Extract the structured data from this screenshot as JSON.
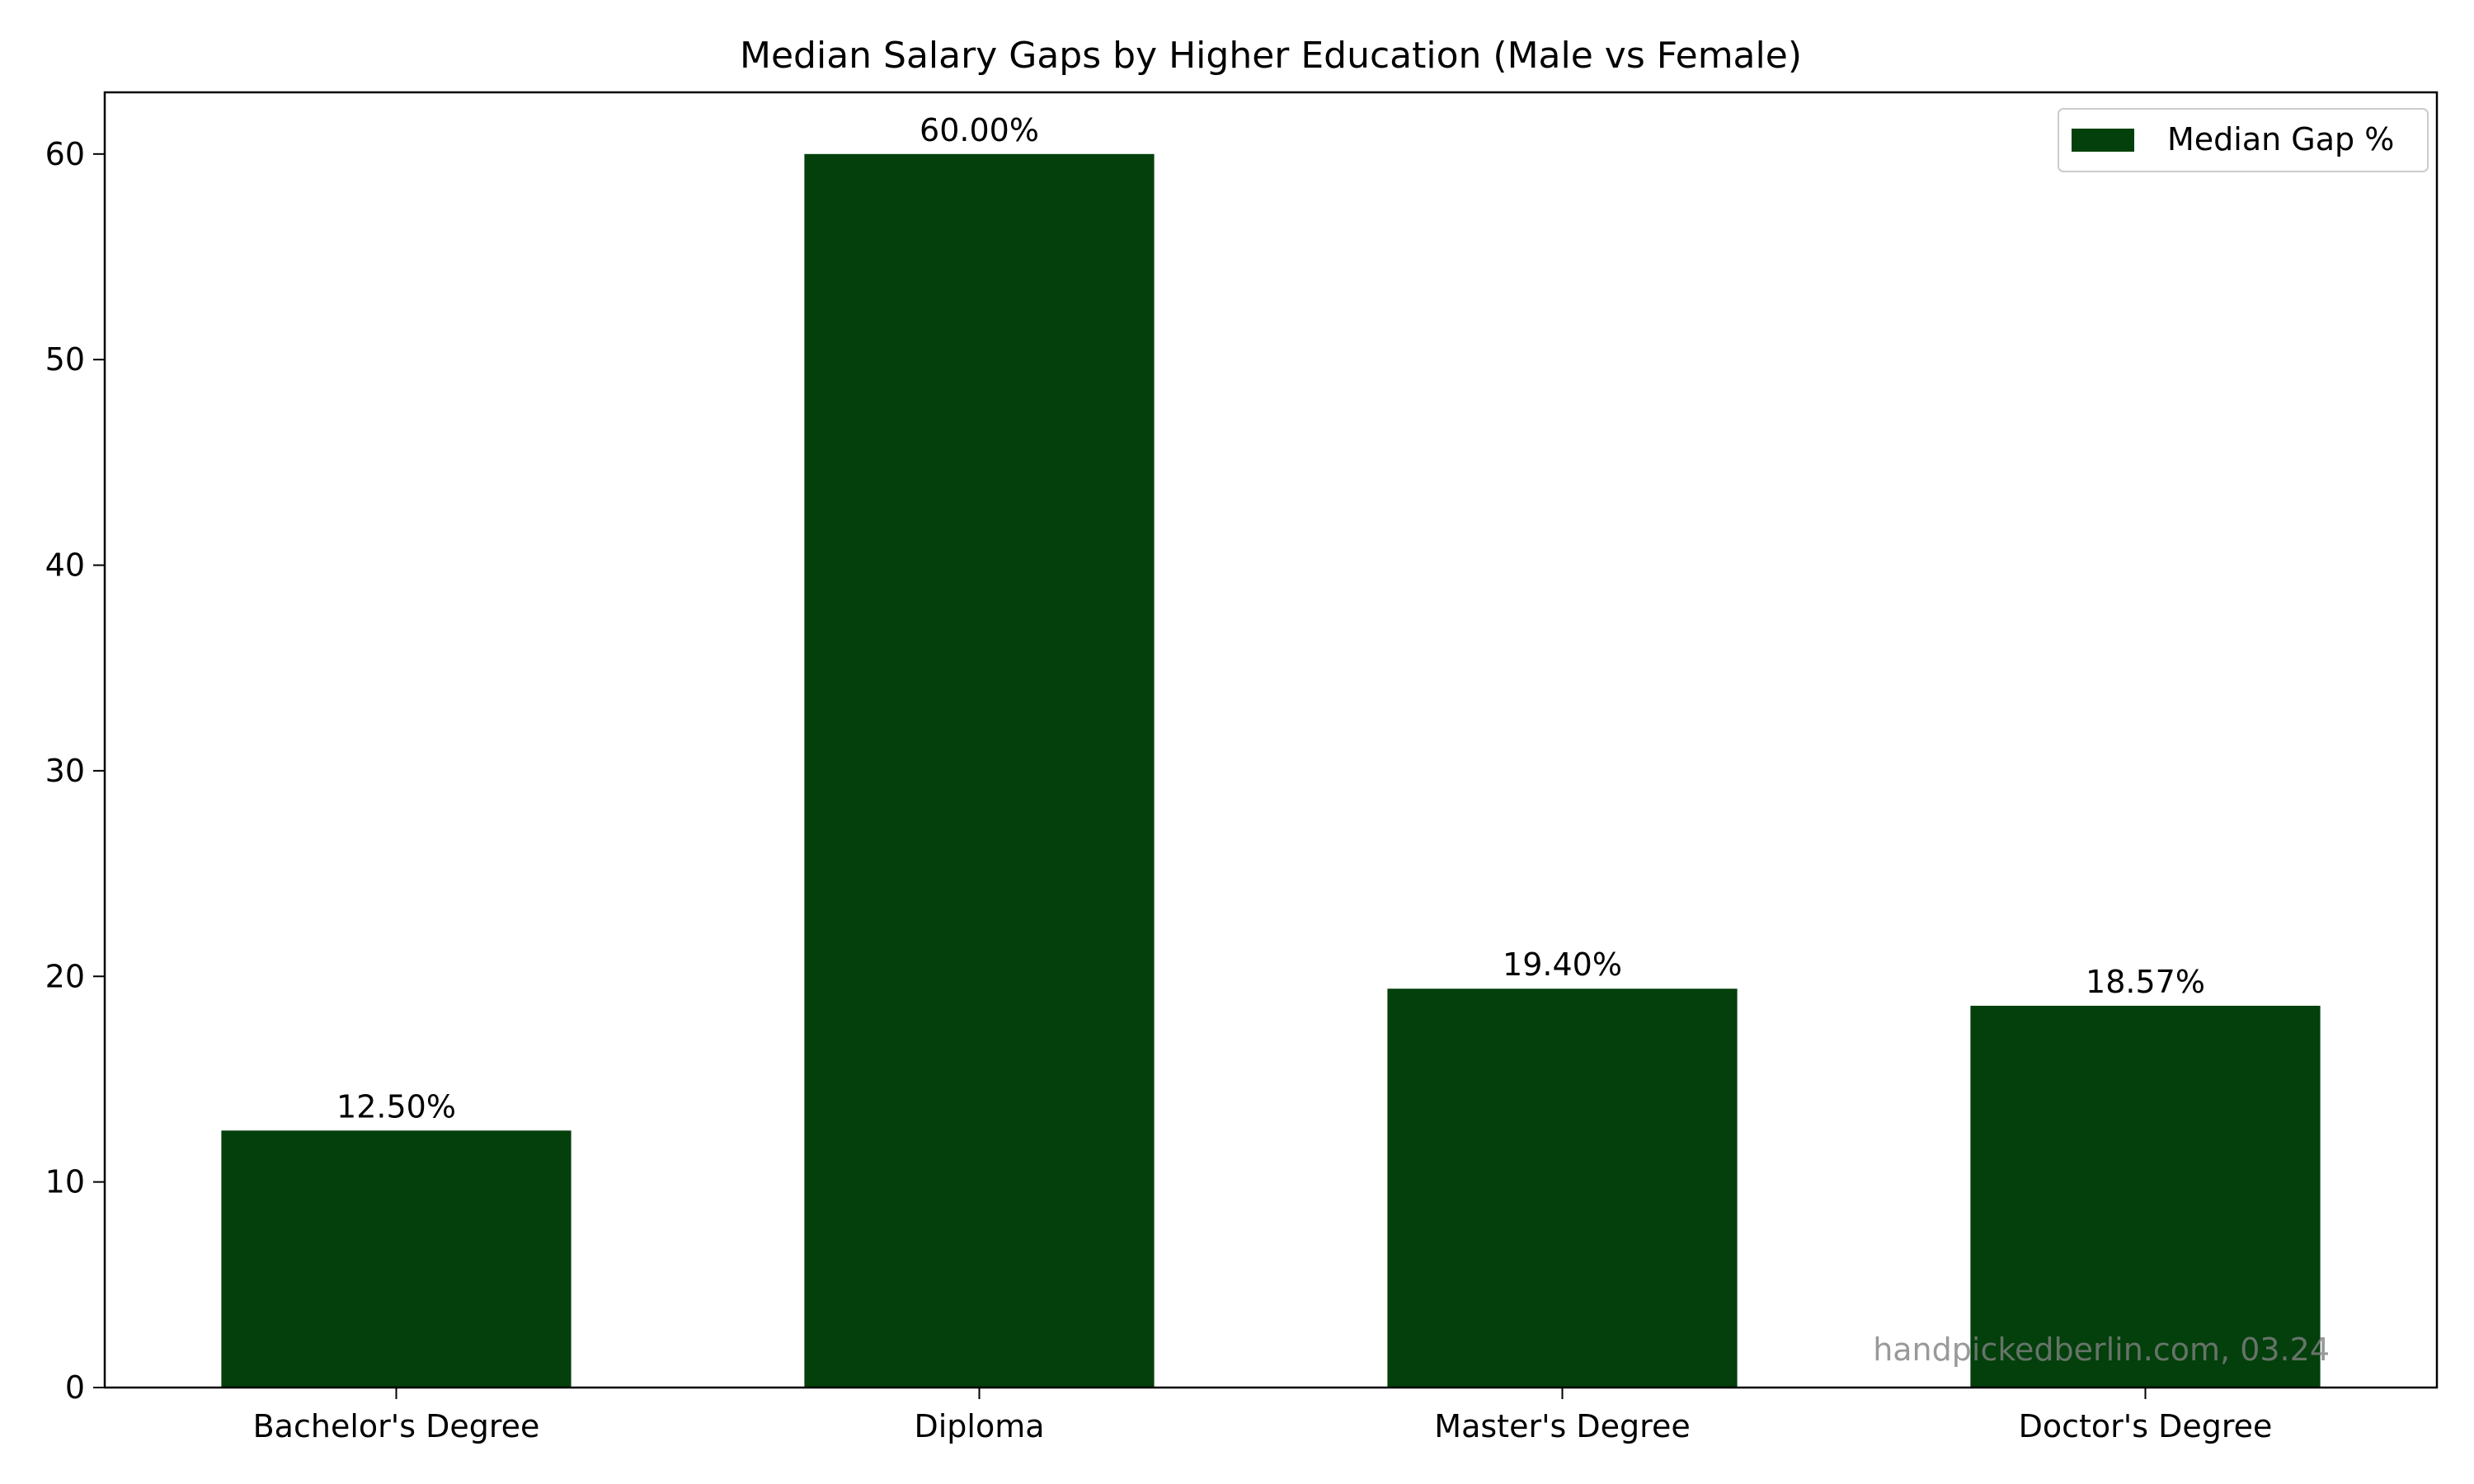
{
  "chart_data": {
    "type": "bar",
    "title": "Median Salary Gaps by Higher Education (Male vs Female)",
    "xlabel": "",
    "ylabel": "",
    "categories": [
      "Bachelor's Degree",
      "Diploma",
      "Master's Degree",
      "Doctor's Degree"
    ],
    "series": [
      {
        "name": "Median Gap %",
        "values": [
          12.5,
          60.0,
          19.4,
          18.57
        ],
        "color": "#03400c"
      }
    ],
    "data_labels": [
      "12.50%",
      "60.00%",
      "19.40%",
      "18.57%"
    ],
    "ylim": [
      0,
      63
    ],
    "yticks": [
      0,
      10,
      20,
      30,
      40,
      50,
      60
    ],
    "grid": false,
    "legend": "top-right",
    "annotation": "handpickedberlin.com, 03.24"
  }
}
